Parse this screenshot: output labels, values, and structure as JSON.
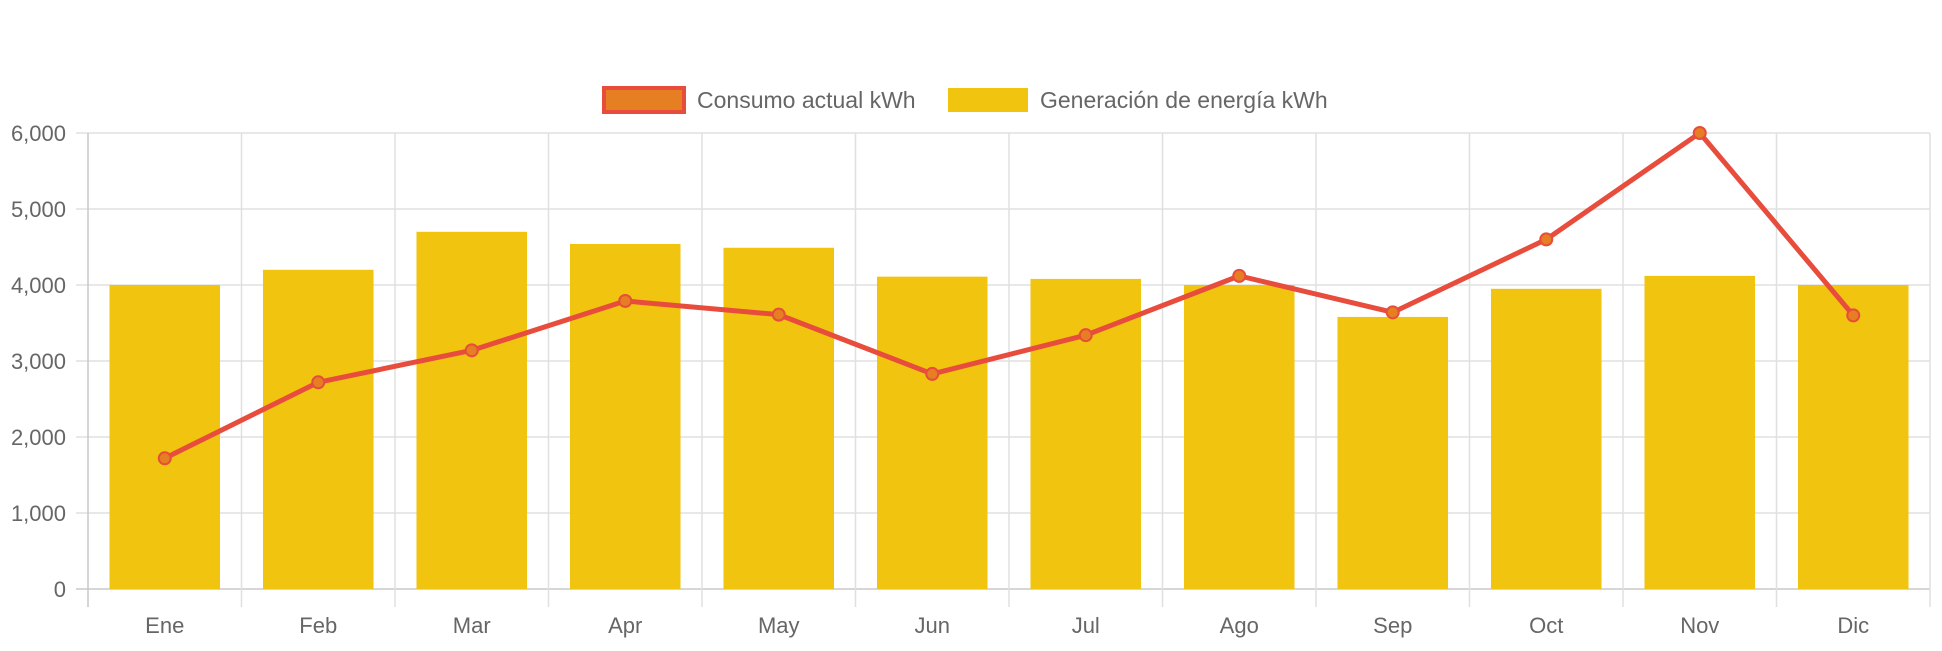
{
  "chart_data": {
    "type": "bar",
    "categories": [
      "Ene",
      "Feb",
      "Mar",
      "Apr",
      "May",
      "Jun",
      "Jul",
      "Ago",
      "Sep",
      "Oct",
      "Nov",
      "Dic"
    ],
    "series": [
      {
        "name": "Consumo actual kWh",
        "kind": "line",
        "color": "#e74c3c",
        "point_color": "#e67e22",
        "values": [
          1720,
          2720,
          3140,
          3790,
          3610,
          2830,
          3340,
          4120,
          3640,
          4600,
          6000,
          3600
        ]
      },
      {
        "name": "Generación de energía kWh",
        "kind": "bar",
        "color": "#f1c40f",
        "values": [
          4000,
          4200,
          4700,
          4540,
          4490,
          4110,
          4080,
          4000,
          3580,
          3950,
          4120,
          4000
        ]
      }
    ],
    "ylim": [
      0,
      6000
    ],
    "yticks": [
      "0",
      "1,000",
      "2,000",
      "3,000",
      "4,000",
      "5,000",
      "6,000"
    ],
    "grid": true,
    "legend_position": "top-center"
  }
}
